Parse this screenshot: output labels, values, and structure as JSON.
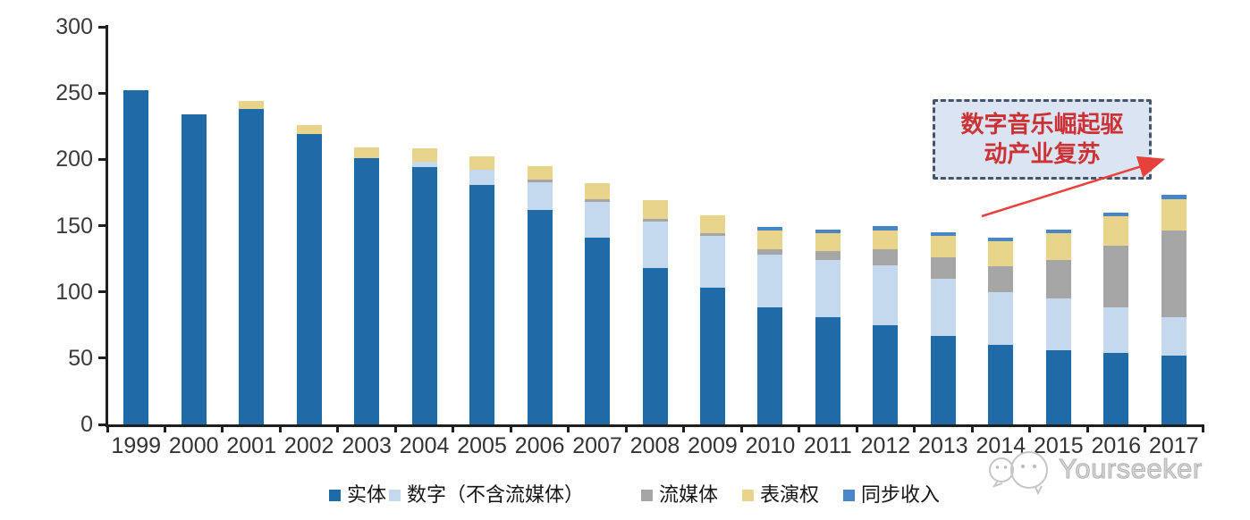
{
  "chart_data": {
    "type": "bar",
    "stacked": true,
    "categories": [
      "1999",
      "2000",
      "2001",
      "2002",
      "2003",
      "2004",
      "2005",
      "2006",
      "2007",
      "2008",
      "2009",
      "2010",
      "2011",
      "2012",
      "2013",
      "2014",
      "2015",
      "2016",
      "2017"
    ],
    "series": [
      {
        "name": "实体",
        "color": "#1f6ba8",
        "values": [
          252,
          234,
          238,
          219,
          201,
          194,
          181,
          162,
          141,
          118,
          103,
          88,
          81,
          75,
          67,
          60,
          56,
          54,
          52
        ]
      },
      {
        "name": "数字（不含流媒体）",
        "color": "#c4d9ee",
        "values": [
          0,
          0,
          0,
          0,
          0,
          4,
          11,
          21,
          27,
          35,
          39,
          40,
          43,
          45,
          43,
          40,
          39,
          34,
          29
        ]
      },
      {
        "name": "流媒体",
        "color": "#a6a6a6",
        "values": [
          0,
          0,
          0,
          0,
          0,
          0,
          0,
          2,
          2,
          2,
          2,
          4,
          7,
          12,
          16,
          19,
          29,
          47,
          65
        ]
      },
      {
        "name": "表演权",
        "color": "#e9d48b",
        "values": [
          0,
          0,
          6,
          7,
          8,
          10,
          10,
          10,
          12,
          14,
          14,
          14,
          13,
          14,
          16,
          19,
          20,
          22,
          24
        ]
      },
      {
        "name": "同步收入",
        "color": "#4a86c6",
        "values": [
          0,
          0,
          0,
          0,
          0,
          0,
          0,
          0,
          0,
          0,
          0,
          3,
          3,
          4,
          3,
          3,
          3,
          3,
          3
        ]
      }
    ],
    "ylim": [
      0,
      300
    ],
    "yticks": [
      "0",
      "50",
      "100",
      "150",
      "200",
      "250",
      "300"
    ],
    "grid": "off",
    "legend_position": "bottom",
    "annotation": {
      "full_text": "数字音乐崛起驱动产业复苏",
      "lines": [
        "数字音乐崛起驱",
        "动产业复苏"
      ],
      "text_color": "#cc3134",
      "box_fill": "#dbe4f2",
      "box_border": "#44546a",
      "arrow_color": "#e8403a"
    }
  },
  "watermark": {
    "text": "Yourseeker"
  }
}
